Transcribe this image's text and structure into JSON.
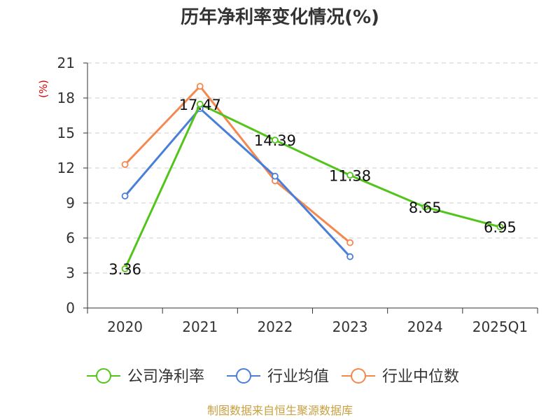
{
  "chart_data": {
    "type": "line",
    "title": "历年净利率变化情况(%)",
    "ylabel": "(%)",
    "xlabel": "",
    "categories": [
      "2020",
      "2021",
      "2022",
      "2023",
      "2024",
      "2025Q1"
    ],
    "ylim": [
      0,
      21
    ],
    "yticks": [
      0,
      3,
      6,
      9,
      12,
      15,
      18,
      21
    ],
    "grid": true,
    "legend_position": "bottom",
    "series": [
      {
        "name": "公司净利率",
        "color": "#52c41a",
        "values": [
          3.36,
          17.47,
          14.39,
          11.38,
          8.65,
          6.95
        ],
        "labels": [
          "3.36",
          "17.47",
          "14.39",
          "11.38",
          "8.65",
          "6.95"
        ]
      },
      {
        "name": "行业均值",
        "color": "#4a7fd9",
        "values": [
          9.6,
          17.1,
          11.3,
          4.4,
          null,
          null
        ]
      },
      {
        "name": "行业中位数",
        "color": "#f5884e",
        "values": [
          12.3,
          19.0,
          10.9,
          5.6,
          null,
          null
        ]
      }
    ]
  },
  "source_note": "制图数据来自恒生聚源数据库"
}
